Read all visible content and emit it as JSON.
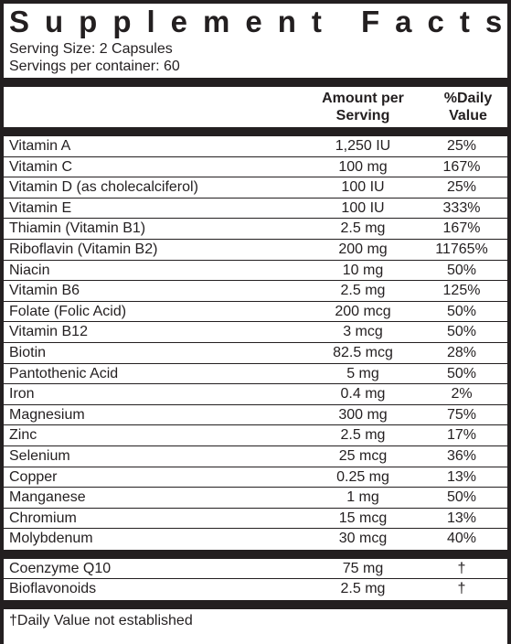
{
  "title": "Supplement Facts",
  "serving_size": "Serving Size: 2 Capsules",
  "servings_per_container": "Servings per container: 60",
  "columns": {
    "amount": "Amount per Serving",
    "daily_value": "%Daily Value"
  },
  "nutrients": [
    {
      "name": "Vitamin A",
      "amount": "1,250 IU",
      "dv": "25%"
    },
    {
      "name": "Vitamin C",
      "amount": "100 mg",
      "dv": "167%"
    },
    {
      "name": "Vitamin D (as cholecalciferol)",
      "amount": "100 IU",
      "dv": "25%"
    },
    {
      "name": "Vitamin E",
      "amount": "100 IU",
      "dv": "333%"
    },
    {
      "name": "Thiamin (Vitamin B1)",
      "amount": "2.5 mg",
      "dv": "167%"
    },
    {
      "name": "Riboflavin (Vitamin B2)",
      "amount": "200 mg",
      "dv": "11765%"
    },
    {
      "name": "Niacin",
      "amount": "10 mg",
      "dv": "50%"
    },
    {
      "name": "Vitamin B6",
      "amount": "2.5 mg",
      "dv": "125%"
    },
    {
      "name": "Folate (Folic Acid)",
      "amount": "200 mcg",
      "dv": "50%"
    },
    {
      "name": "Vitamin B12",
      "amount": "3 mcg",
      "dv": "50%"
    },
    {
      "name": "Biotin",
      "amount": "82.5 mcg",
      "dv": "28%"
    },
    {
      "name": "Pantothenic Acid",
      "amount": "5 mg",
      "dv": "50%"
    },
    {
      "name": "Iron",
      "amount": "0.4 mg",
      "dv": "2%"
    },
    {
      "name": "Magnesium",
      "amount": "300 mg",
      "dv": "75%"
    },
    {
      "name": "Zinc",
      "amount": "2.5 mg",
      "dv": "17%"
    },
    {
      "name": "Selenium",
      "amount": "25 mcg",
      "dv": "36%"
    },
    {
      "name": "Copper",
      "amount": "0.25 mg",
      "dv": "13%"
    },
    {
      "name": "Manganese",
      "amount": "1 mg",
      "dv": "50%"
    },
    {
      "name": "Chromium",
      "amount": "15 mcg",
      "dv": "13%"
    },
    {
      "name": "Molybdenum",
      "amount": "30 mcg",
      "dv": "40%"
    }
  ],
  "other_ingredients": [
    {
      "name": "Coenzyme Q10",
      "amount": "75 mg",
      "dv": "†"
    },
    {
      "name": "Bioflavonoids",
      "amount": "2.5 mg",
      "dv": "†"
    }
  ],
  "footnote": "†Daily Value not established",
  "colors": {
    "ink": "#231f20",
    "background": "#ffffff"
  }
}
